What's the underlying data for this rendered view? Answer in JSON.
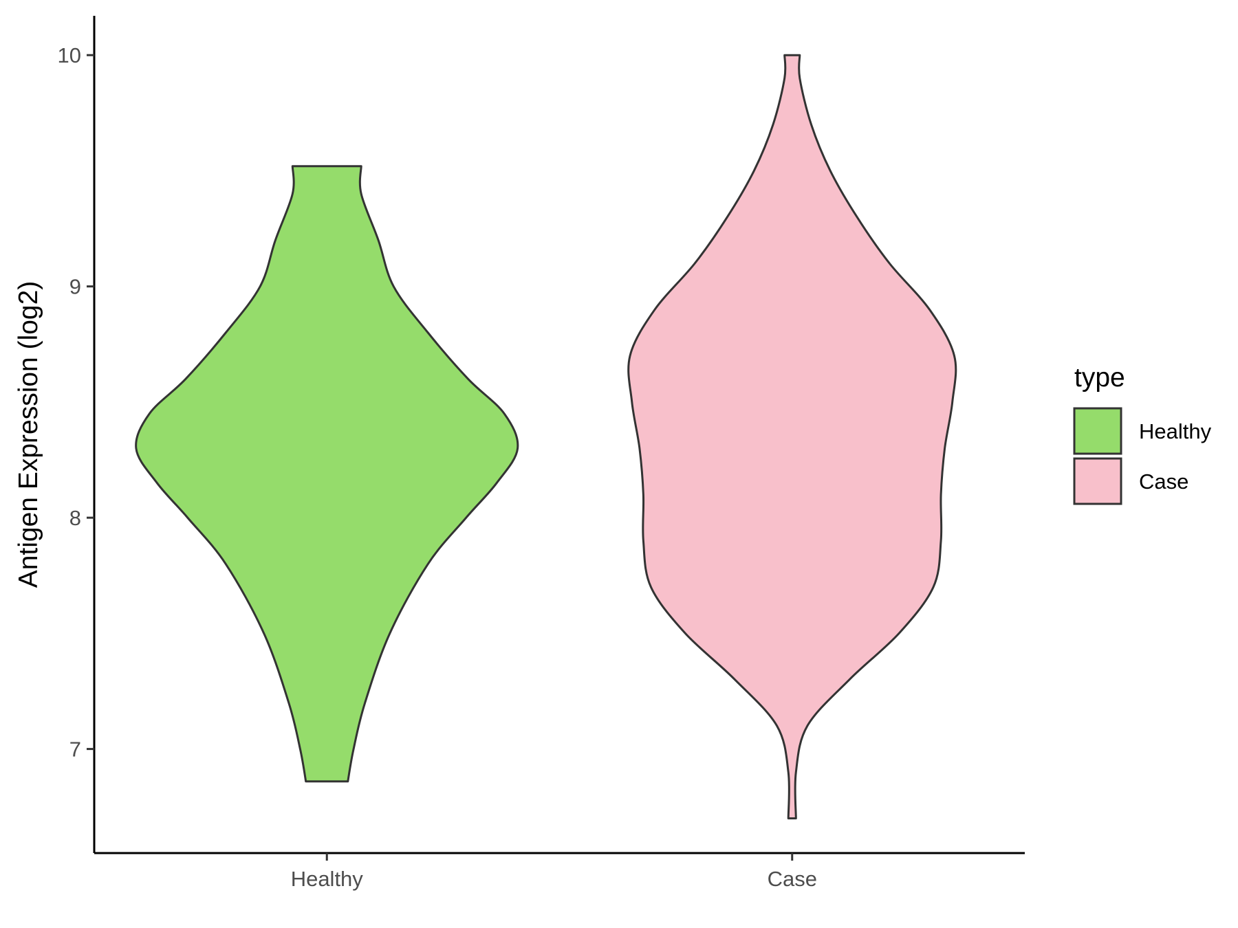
{
  "chart_data": {
    "type": "violin",
    "ylabel": "Antigen Expression (log2)",
    "xlabel": "",
    "title": "",
    "categories": [
      "Healthy",
      "Case"
    ],
    "ylim": [
      6.55,
      10.17
    ],
    "yticks": [
      7,
      8,
      9,
      10
    ],
    "grid": false,
    "legend": {
      "title": "type",
      "position": "right",
      "entries": [
        {
          "label": "Healthy",
          "color": "#95DC6B"
        },
        {
          "label": "Case",
          "color": "#F8C0CB"
        }
      ]
    },
    "series": [
      {
        "category": "Healthy",
        "color": "#95DC6B",
        "min": 6.86,
        "max": 9.52,
        "density_profile": [
          [
            6.86,
            0.11
          ],
          [
            7.0,
            0.14
          ],
          [
            7.2,
            0.2
          ],
          [
            7.5,
            0.33
          ],
          [
            7.8,
            0.53
          ],
          [
            8.0,
            0.73
          ],
          [
            8.15,
            0.89
          ],
          [
            8.3,
            1.0
          ],
          [
            8.45,
            0.93
          ],
          [
            8.6,
            0.74
          ],
          [
            8.8,
            0.53
          ],
          [
            9.0,
            0.35
          ],
          [
            9.2,
            0.27
          ],
          [
            9.4,
            0.18
          ],
          [
            9.52,
            0.18
          ]
        ]
      },
      {
        "category": "Case",
        "color": "#F8C0CB",
        "min": 6.7,
        "max": 10.0,
        "density_profile": [
          [
            6.7,
            0.02
          ],
          [
            6.9,
            0.02
          ],
          [
            7.1,
            0.08
          ],
          [
            7.3,
            0.3
          ],
          [
            7.5,
            0.56
          ],
          [
            7.7,
            0.74
          ],
          [
            7.9,
            0.78
          ],
          [
            8.1,
            0.78
          ],
          [
            8.3,
            0.8
          ],
          [
            8.5,
            0.84
          ],
          [
            8.7,
            0.85
          ],
          [
            8.9,
            0.72
          ],
          [
            9.1,
            0.51
          ],
          [
            9.3,
            0.34
          ],
          [
            9.5,
            0.2
          ],
          [
            9.7,
            0.1
          ],
          [
            9.9,
            0.04
          ],
          [
            10.0,
            0.04
          ]
        ]
      }
    ]
  }
}
